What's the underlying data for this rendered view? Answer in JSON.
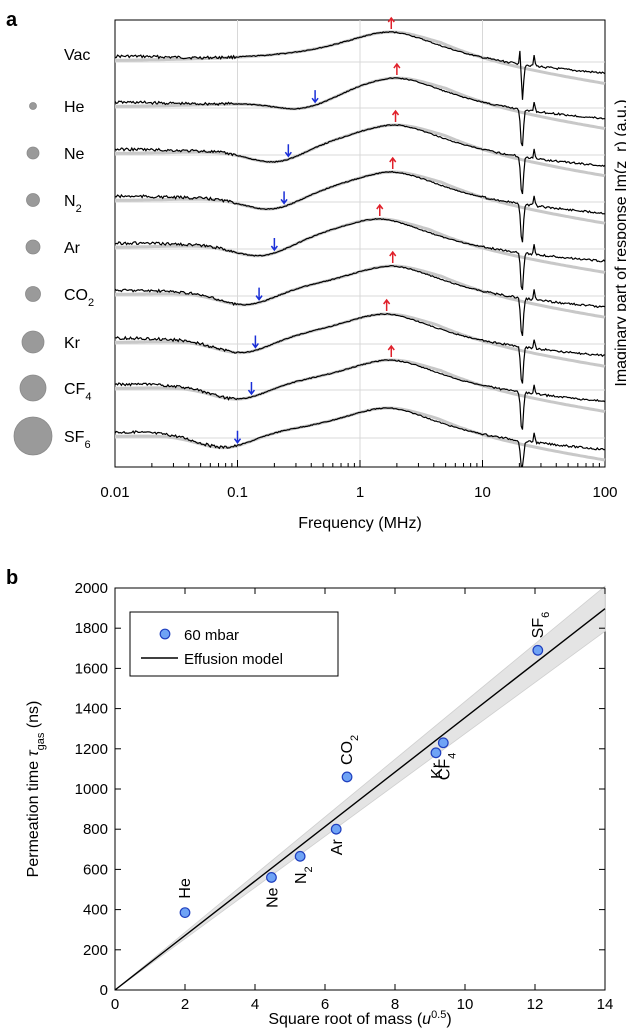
{
  "panel_a": {
    "letter": "a",
    "xlabel": "Frequency (MHz)",
    "ylabel": "Imaginary part of  response Im(z_r) (a.u.)",
    "x_ticks": [
      "0.01",
      "0.1",
      "1",
      "10",
      "100"
    ],
    "gases": [
      {
        "label": "Vac",
        "sub": "",
        "molar_mass": 0,
        "blue_mhz": null,
        "red_mhz": 1.8
      },
      {
        "label": "He",
        "sub": "",
        "molar_mass": 4,
        "blue_mhz": 0.43,
        "red_mhz": 2.0
      },
      {
        "label": "Ne",
        "sub": "",
        "molar_mass": 20,
        "blue_mhz": 0.26,
        "red_mhz": 1.95
      },
      {
        "label": "N",
        "sub": "2",
        "molar_mass": 28,
        "blue_mhz": 0.24,
        "red_mhz": 1.85
      },
      {
        "label": "Ar",
        "sub": "",
        "molar_mass": 40,
        "blue_mhz": 0.2,
        "red_mhz": 1.45
      },
      {
        "label": "CO",
        "sub": "2",
        "molar_mass": 44,
        "blue_mhz": 0.15,
        "red_mhz": 1.85
      },
      {
        "label": "Kr",
        "sub": "",
        "molar_mass": 84,
        "blue_mhz": 0.14,
        "red_mhz": 1.65
      },
      {
        "label": "CF",
        "sub": "4",
        "molar_mass": 88,
        "blue_mhz": 0.13,
        "red_mhz": 1.8
      },
      {
        "label": "SF",
        "sub": "6",
        "molar_mass": 146,
        "blue_mhz": 0.1,
        "red_mhz": null
      }
    ],
    "colors": {
      "data": "#000000",
      "fit": "#c8c8c8",
      "blue_arrow": "#1a2fd8",
      "red_arrow": "#e0202a",
      "dot": "#9a9a9a"
    }
  },
  "panel_b": {
    "letter": "b",
    "legend": {
      "marker_label": "60 mbar",
      "line_label": "Effusion model"
    },
    "colors": {
      "marker_fill": "#6fa3f5",
      "marker_edge": "#1f3fbf",
      "band": "#e4e4e4",
      "line": "#000000"
    }
  },
  "chart_data": {
    "type": "scatter",
    "xlabel": "Square root of mass (u^0.5)",
    "ylabel": "Permeation time τ_gas (ns)",
    "xlim": [
      0,
      14
    ],
    "ylim": [
      0,
      2000
    ],
    "x_ticks": [
      "0",
      "2",
      "4",
      "6",
      "8",
      "10",
      "12",
      "14"
    ],
    "y_ticks": [
      "0",
      "200",
      "400",
      "600",
      "800",
      "1000",
      "1200",
      "1400",
      "1600",
      "1800",
      "2000"
    ],
    "series": [
      {
        "name": "60 mbar",
        "points": [
          {
            "label": "He",
            "sub": "",
            "x": 2.0,
            "y": 385
          },
          {
            "label": "Ne",
            "sub": "",
            "x": 4.47,
            "y": 560
          },
          {
            "label": "N",
            "sub": "2",
            "x": 5.29,
            "y": 665
          },
          {
            "label": "Ar",
            "sub": "",
            "x": 6.32,
            "y": 800
          },
          {
            "label": "CO",
            "sub": "2",
            "x": 6.63,
            "y": 1060
          },
          {
            "label": "Kr",
            "sub": "",
            "x": 9.17,
            "y": 1180
          },
          {
            "label": "CF",
            "sub": "4",
            "x": 9.38,
            "y": 1230
          },
          {
            "label": "SF",
            "sub": "6",
            "x": 12.08,
            "y": 1690
          }
        ]
      },
      {
        "name": "Effusion model",
        "slope": 135.5,
        "band_upper_slope": 143.5,
        "band_lower_slope": 127.5
      }
    ],
    "legend_position": "top-left",
    "grid": false
  }
}
